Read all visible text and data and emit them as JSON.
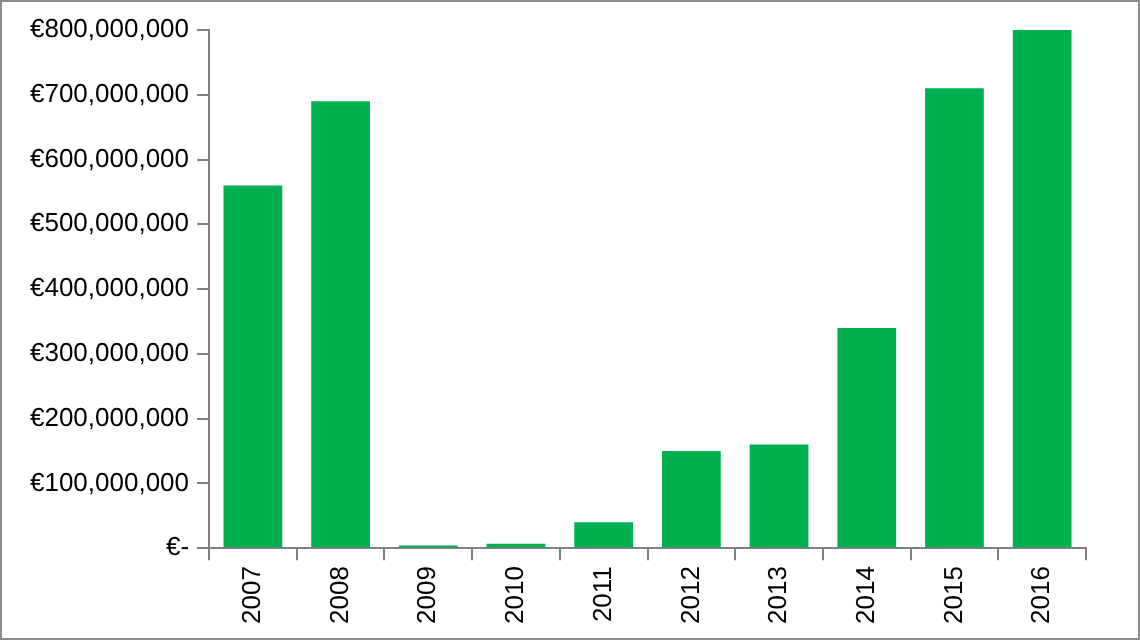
{
  "chart_data": {
    "type": "bar",
    "categories": [
      "2007",
      "2008",
      "2009",
      "2010",
      "2011",
      "2012",
      "2013",
      "2014",
      "2015",
      "2016"
    ],
    "values": [
      560000000,
      690000000,
      4000000,
      7000000,
      40000000,
      150000000,
      160000000,
      340000000,
      710000000,
      800000000
    ],
    "color": "#00b050",
    "ylim": [
      0,
      800000000
    ],
    "yticks": [
      {
        "value": 0,
        "label": "€-"
      },
      {
        "value": 100000000,
        "label": "€100,000,000"
      },
      {
        "value": 200000000,
        "label": "€200,000,000"
      },
      {
        "value": 300000000,
        "label": "€300,000,000"
      },
      {
        "value": 400000000,
        "label": "€400,000,000"
      },
      {
        "value": 500000000,
        "label": "€500,000,000"
      },
      {
        "value": 600000000,
        "label": "€600,000,000"
      },
      {
        "value": 700000000,
        "label": "€700,000,000"
      },
      {
        "value": 800000000,
        "label": "€800,000,000"
      }
    ],
    "grid": false,
    "legend": false
  }
}
